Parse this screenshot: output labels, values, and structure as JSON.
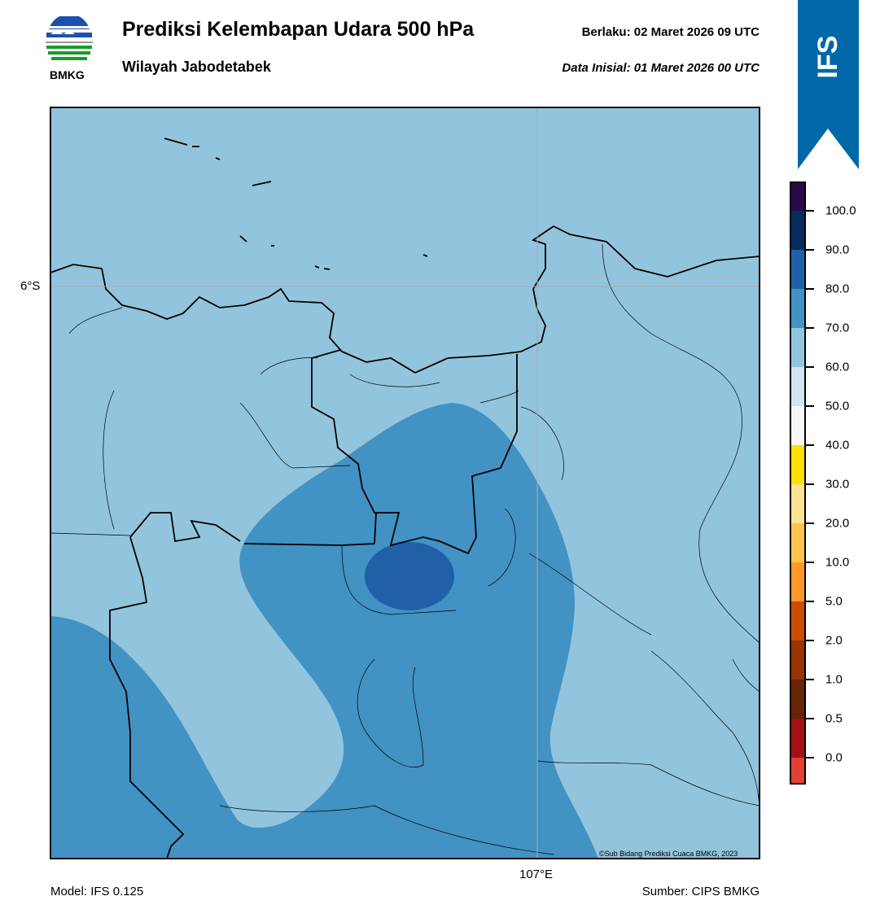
{
  "header": {
    "title": "Prediksi Kelembapan Udara 500 hPa",
    "subtitle": "Wilayah Jabodetabek",
    "valid": "Berlaku:  02 Maret 2026 09 UTC",
    "initial": "Data Inisial:  01 Maret 2026 00 UTC",
    "logo_text": "BMKG",
    "badge": "IFS"
  },
  "map": {
    "lat_tick": "6°S",
    "lon_tick": "107°E",
    "credit": "©Sub Bidang Prediksi Cuaca BMKG, 2023",
    "colors": {
      "background": "#92c4de",
      "medium": "#4292c4",
      "high": "#2060a8"
    }
  },
  "colorbar": {
    "labels": [
      "100.0",
      "90.0",
      "80.0",
      "70.0",
      "60.0",
      "50.0",
      "40.0",
      "30.0",
      "20.0",
      "10.0",
      "5.0",
      "2.0",
      "1.0",
      "0.5",
      "0.0"
    ],
    "colors": [
      "#2a0a4a",
      "#062d5e",
      "#2060a8",
      "#4292c4",
      "#92c4de",
      "#d1e5f0",
      "#f7f7f7",
      "#fde000",
      "#fee391",
      "#fec44f",
      "#fe9929",
      "#cc4c02",
      "#993404",
      "#662506",
      "#a50f15",
      "#e34032"
    ]
  },
  "footer": {
    "model": "Model: IFS 0.125",
    "source": "Sumber: CIPS BMKG"
  }
}
